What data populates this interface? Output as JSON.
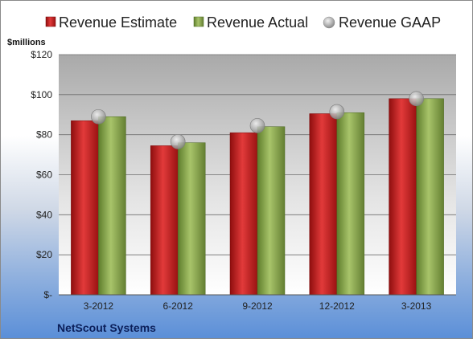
{
  "chart_data": {
    "type": "bar",
    "unit_label": "$millions",
    "categories": [
      "3-2012",
      "6-2012",
      "9-2012",
      "12-2012",
      "3-2013"
    ],
    "series": [
      {
        "name": "Revenue Estimate",
        "kind": "bar",
        "color": "#c81e1e",
        "values": [
          87,
          74.5,
          81,
          90.5,
          98
        ]
      },
      {
        "name": "Revenue Actual",
        "kind": "bar",
        "color": "#8aaa4a",
        "values": [
          89,
          76,
          84,
          91,
          98
        ]
      },
      {
        "name": "Revenue GAAP",
        "kind": "marker",
        "color": "#a8a8a8",
        "values": [
          89,
          76.5,
          84.5,
          91.5,
          98
        ]
      }
    ],
    "ylim": [
      0,
      120
    ],
    "yticks": [
      0,
      20,
      40,
      60,
      80,
      100,
      120
    ],
    "ytick_labels": [
      "$-",
      "$20",
      "$40",
      "$60",
      "$80",
      "$100",
      "$120"
    ],
    "grid": true,
    "legend_position": "top",
    "footer": "NetScout Systems"
  }
}
